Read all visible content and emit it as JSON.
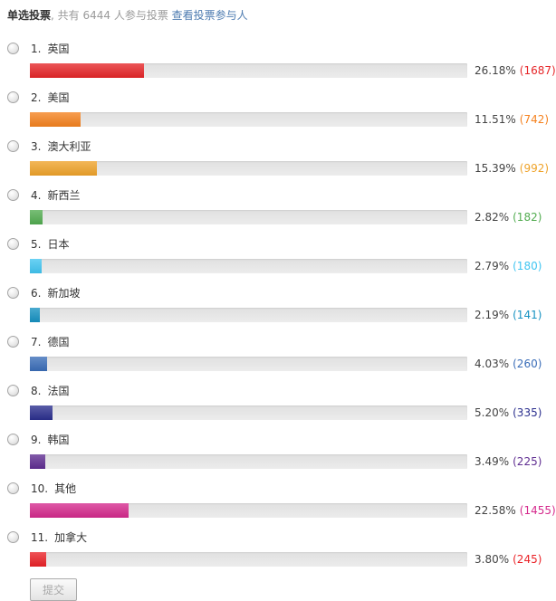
{
  "header": {
    "title": "单选投票",
    "subtitle": ", 共有 6444 人参与投票 ",
    "participants_total": 6444,
    "link_label": "查看投票参与人",
    "link_color": "#4d7bb0"
  },
  "options": [
    {
      "num": "1.",
      "label": "英国",
      "percent": "26.18%",
      "percent_value": 26.18,
      "count": "(1687)",
      "votes": 1687,
      "color": "#e62629"
    },
    {
      "num": "2.",
      "label": "美国",
      "percent": "11.51%",
      "percent_value": 11.51,
      "count": "(742)",
      "votes": 742,
      "color": "#f5821f"
    },
    {
      "num": "3.",
      "label": "澳大利亚",
      "percent": "15.39%",
      "percent_value": 15.39,
      "count": "(992)",
      "votes": 992,
      "color": "#efa32a"
    },
    {
      "num": "4.",
      "label": "新西兰",
      "percent": "2.82%",
      "percent_value": 2.82,
      "count": "(182)",
      "votes": 182,
      "color": "#52ac50"
    },
    {
      "num": "5.",
      "label": "日本",
      "percent": "2.79%",
      "percent_value": 2.79,
      "count": "(180)",
      "votes": 180,
      "color": "#41c5f1"
    },
    {
      "num": "6.",
      "label": "新加坡",
      "percent": "2.19%",
      "percent_value": 2.19,
      "count": "(141)",
      "votes": 141,
      "color": "#1692c2"
    },
    {
      "num": "7.",
      "label": "德国",
      "percent": "4.03%",
      "percent_value": 4.03,
      "count": "(260)",
      "votes": 260,
      "color": "#3a6db8"
    },
    {
      "num": "8.",
      "label": "法国",
      "percent": "5.20%",
      "percent_value": 5.2,
      "count": "(335)",
      "votes": 335,
      "color": "#2b2f8e"
    },
    {
      "num": "9.",
      "label": "韩国",
      "percent": "3.49%",
      "percent_value": 3.49,
      "count": "(225)",
      "votes": 225,
      "color": "#5f2d91"
    },
    {
      "num": "10.",
      "label": "其他",
      "percent": "22.58%",
      "percent_value": 22.58,
      "count": "(1455)",
      "votes": 1455,
      "color": "#d52a8d"
    },
    {
      "num": "11.",
      "label": "加拿大",
      "percent": "3.80%",
      "percent_value": 3.8,
      "count": "(245)",
      "votes": 245,
      "color": "#ea2227"
    }
  ],
  "submit": {
    "label": "提交"
  }
}
